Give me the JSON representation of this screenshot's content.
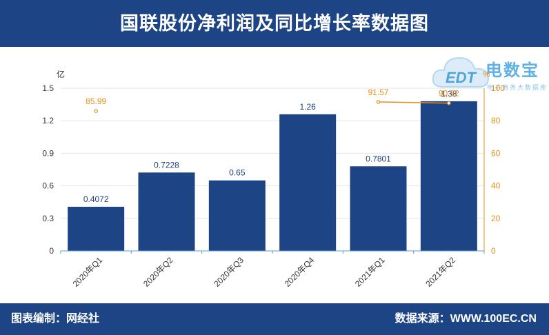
{
  "header": {
    "title": "国联股份净利润及同比增长率数据图"
  },
  "footer": {
    "left": "图表编制：网经社",
    "right": "数据来源：WWW.100EC.CN"
  },
  "logo": {
    "main": "电数宝",
    "sub": "电子商务大数据库",
    "cloud_text": "EDT"
  },
  "colors": {
    "header": "#1d4485",
    "bar": "#1d4485",
    "line": "#e8901a",
    "right_axis": "#e8901a"
  },
  "chart_data": {
    "type": "bar",
    "categories": [
      "2020年Q1",
      "2020年Q2",
      "2020年Q3",
      "2020年Q4",
      "2021年Q1",
      "2021年Q2"
    ],
    "series": [
      {
        "values": [
          0.4072,
          0.7228,
          0.65,
          1.26,
          0.7801,
          1.38
        ],
        "labels": [
          "0.4072",
          "0.7228",
          "0.65",
          "1.26",
          "0.7801",
          "1.38"
        ],
        "axis": "left",
        "type": "bar"
      },
      {
        "values": [
          85.99,
          null,
          null,
          null,
          91.57,
          90.82
        ],
        "labels": [
          "85.99",
          "",
          "",
          "",
          "91.57",
          "90.82"
        ],
        "axis": "right",
        "type": "line"
      }
    ],
    "ylabel": "亿",
    "y2label": "%",
    "ylim": [
      0,
      1.5
    ],
    "yticks": [
      "0",
      "0.3",
      "0.6",
      "0.9",
      "1.2",
      "1.5"
    ],
    "y2lim": [
      0,
      100
    ],
    "y2ticks": [
      "0",
      "20",
      "40",
      "60",
      "80",
      "100"
    ],
    "grid": true
  }
}
